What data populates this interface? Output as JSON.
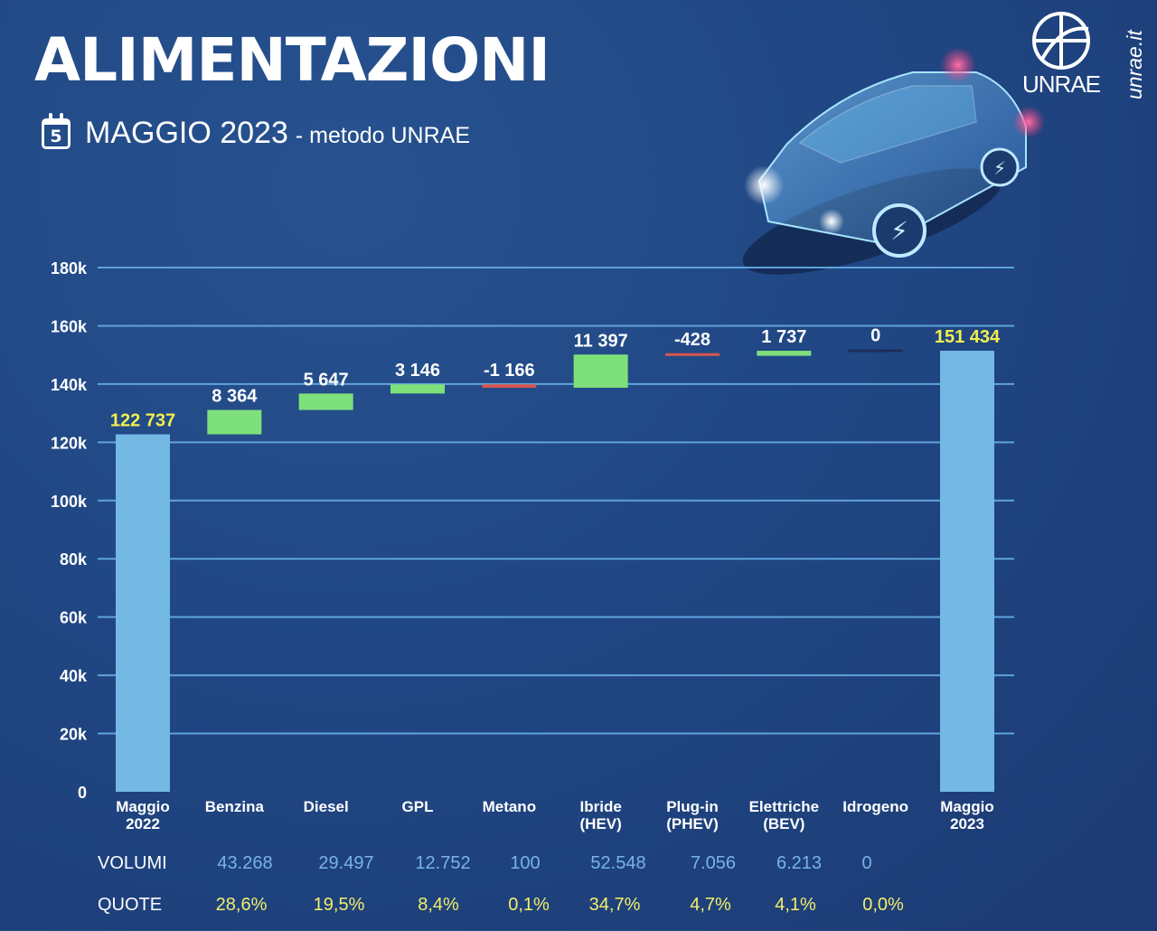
{
  "header": {
    "title": "ALIMENTAZIONI",
    "calendar_day": "5",
    "subtitle_main": "MAGGIO 2023",
    "subtitle_secondary": "- metodo UNRAE",
    "logo_text": "UNRAE",
    "site": "unrae.it"
  },
  "colors": {
    "background": "#204784",
    "total_bar": "#74b8e4",
    "increase_bar": "#7ee07a",
    "decrease_bar": "#d9554e",
    "gridline": "#5fa3dc",
    "total_label": "#f3ef4c",
    "delta_label": "#ffffff",
    "volumi": "#79b3e6",
    "quote": "#f2ee6b"
  },
  "chart_data": {
    "type": "waterfall",
    "ylim": [
      0,
      180000
    ],
    "yticks": [
      0,
      20000,
      40000,
      60000,
      80000,
      100000,
      120000,
      140000,
      160000,
      180000
    ],
    "ytick_labels": [
      "0",
      "20k",
      "40k",
      "60k",
      "80k",
      "100k",
      "120k",
      "140k",
      "160k",
      "180k"
    ],
    "grid": true,
    "steps": [
      {
        "label": [
          "Maggio",
          "2022"
        ],
        "kind": "total",
        "value": 122737,
        "text": "122 737"
      },
      {
        "label": [
          "Benzina"
        ],
        "kind": "delta",
        "value": 8364,
        "text": "8 364"
      },
      {
        "label": [
          "Diesel"
        ],
        "kind": "delta",
        "value": 5647,
        "text": "5 647"
      },
      {
        "label": [
          "GPL"
        ],
        "kind": "delta",
        "value": 3146,
        "text": "3 146"
      },
      {
        "label": [
          "Metano"
        ],
        "kind": "delta",
        "value": -1166,
        "text": "-1 166"
      },
      {
        "label": [
          "Ibride",
          "(HEV)"
        ],
        "kind": "delta",
        "value": 11397,
        "text": "11 397"
      },
      {
        "label": [
          "Plug-in",
          "(PHEV)"
        ],
        "kind": "delta",
        "value": -428,
        "text": "-428"
      },
      {
        "label": [
          "Elettriche",
          "(BEV)"
        ],
        "kind": "delta",
        "value": 1737,
        "text": "1 737"
      },
      {
        "label": [
          "Idrogeno"
        ],
        "kind": "delta",
        "value": 0,
        "text": "0"
      },
      {
        "label": [
          "Maggio",
          "2023"
        ],
        "kind": "total",
        "value": 151434,
        "text": "151 434"
      }
    ]
  },
  "table": {
    "volumi_label": "VOLUMI",
    "quote_label": "QUOTE",
    "volumi": [
      "43.268",
      "29.497",
      "12.752",
      "100",
      "52.548",
      "7.056",
      "6.213",
      "0"
    ],
    "quote": [
      "28,6%",
      "19,5%",
      "8,4%",
      "0,1%",
      "34,7%",
      "4,7%",
      "4,1%",
      "0,0%"
    ]
  }
}
